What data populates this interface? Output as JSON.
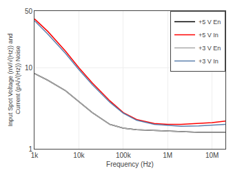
{
  "chart_data": {
    "type": "line",
    "xlabel": "Frequency (Hz)",
    "ylabel": "Input Spot Voltage (nV/√(Hz)) and\nCurrent (pA/√(Hz)) Noise",
    "x": [
      1000,
      2000,
      5000,
      10000,
      20000,
      50000,
      100000,
      200000,
      500000,
      1000000,
      2000000,
      5000000,
      10000000,
      20000000
    ],
    "series": [
      {
        "name": "+5 V En",
        "color": "#000000",
        "values": [
          8.5,
          7.0,
          5.2,
          3.8,
          2.8,
          2.0,
          1.8,
          1.72,
          1.68,
          1.65,
          1.62,
          1.6,
          1.6,
          1.6
        ]
      },
      {
        "name": "+5 V In",
        "color": "#ff0000",
        "values": [
          40,
          28,
          16,
          10,
          6.5,
          3.9,
          2.8,
          2.3,
          2.05,
          2.0,
          2.0,
          2.05,
          2.1,
          2.2
        ]
      },
      {
        "name": "+3 V En",
        "color": "#aaaaaa",
        "values": [
          8.5,
          7.0,
          5.2,
          3.8,
          2.8,
          2.0,
          1.8,
          1.72,
          1.68,
          1.65,
          1.62,
          1.6,
          1.6,
          1.6
        ]
      },
      {
        "name": "+3 V In",
        "color": "#5b7fad",
        "values": [
          38,
          26,
          15,
          9.5,
          6.2,
          3.75,
          2.75,
          2.25,
          2.0,
          1.95,
          1.9,
          1.92,
          1.95,
          2.0
        ]
      }
    ],
    "xlim": [
      1000,
      20000000
    ],
    "ylim": [
      1,
      50
    ],
    "xticks": [
      {
        "value": 1000,
        "label": "1k"
      },
      {
        "value": 10000,
        "label": "10k"
      },
      {
        "value": 100000,
        "label": "100k"
      },
      {
        "value": 1000000,
        "label": "1M"
      },
      {
        "value": 10000000,
        "label": "10M"
      }
    ],
    "yticks": [
      1,
      10,
      50
    ],
    "log": true,
    "grid": true,
    "legend": "upper right"
  }
}
